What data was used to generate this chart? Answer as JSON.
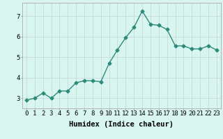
{
  "x": [
    0,
    1,
    2,
    3,
    4,
    5,
    6,
    7,
    8,
    9,
    10,
    11,
    12,
    13,
    14,
    15,
    16,
    17,
    18,
    19,
    20,
    21,
    22,
    23
  ],
  "y": [
    2.9,
    3.0,
    3.25,
    3.0,
    3.35,
    3.35,
    3.75,
    3.85,
    3.85,
    3.8,
    4.7,
    5.35,
    5.95,
    6.45,
    7.25,
    6.6,
    6.55,
    6.35,
    5.55,
    5.55,
    5.4,
    5.4,
    5.55,
    5.35
  ],
  "line_color": "#2e8b7a",
  "marker": "D",
  "marker_size": 2.5,
  "line_width": 1.0,
  "bg_color": "#d8f5f0",
  "grid_color": "#c8dada",
  "xlabel": "Humidex (Indice chaleur)",
  "xlabel_fontsize": 7.5,
  "yticks": [
    3,
    4,
    5,
    6,
    7
  ],
  "xtick_labels": [
    "0",
    "1",
    "2",
    "3",
    "4",
    "5",
    "6",
    "7",
    "8",
    "9",
    "10",
    "11",
    "12",
    "13",
    "14",
    "15",
    "16",
    "17",
    "18",
    "19",
    "20",
    "21",
    "22",
    "23"
  ],
  "ylim": [
    2.5,
    7.65
  ],
  "xlim": [
    -0.5,
    23.5
  ],
  "tick_fontsize": 6.5
}
